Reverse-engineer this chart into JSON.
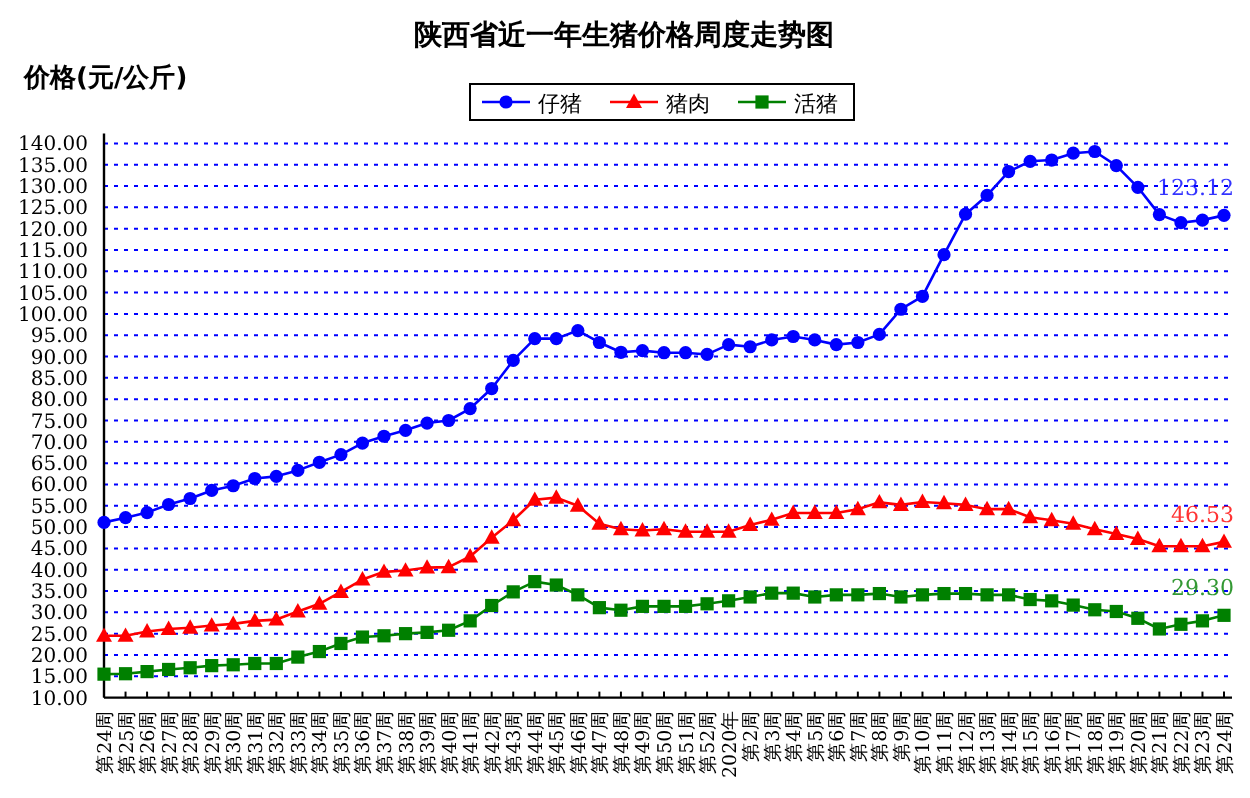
{
  "chart_data": {
    "type": "line",
    "title": "陕西省近一年生猪价格周度走势图",
    "ylabel": "价格(元/公斤)",
    "categories": [
      "第24周",
      "第25周",
      "第26周",
      "第27周",
      "第28周",
      "第29周",
      "第30周",
      "第31周",
      "第32周",
      "第33周",
      "第34周",
      "第35周",
      "第36周",
      "第37周",
      "第38周",
      "第39周",
      "第40周",
      "第41周",
      "第42周",
      "第43周",
      "第44周",
      "第45周",
      "第46周",
      "第47周",
      "第48周",
      "第49周",
      "第50周",
      "第51周",
      "第52周",
      "2020年",
      "第2周",
      "第3周",
      "第4周",
      "第5周",
      "第6周",
      "第7周",
      "第8周",
      "第9周",
      "第10周",
      "第11周",
      "第12周",
      "第13周",
      "第14周",
      "第15周",
      "第16周",
      "第17周",
      "第18周",
      "第19周",
      "第20周",
      "第21周",
      "第22周",
      "第23周",
      "第24周"
    ],
    "series": [
      {
        "name": "仔猪",
        "color": "#0000ff",
        "marker": "circle",
        "values": [
          51.1,
          52.2,
          53.4,
          55.3,
          56.7,
          58.6,
          59.7,
          61.4,
          61.9,
          63.3,
          65.2,
          67.0,
          69.7,
          71.3,
          72.7,
          74.4,
          75.0,
          77.8,
          82.5,
          89.1,
          94.2,
          94.2,
          96.1,
          93.3,
          91.0,
          91.4,
          90.9,
          90.9,
          90.5,
          92.8,
          92.3,
          93.9,
          94.7,
          93.9,
          92.8,
          93.3,
          95.2,
          101.1,
          104.1,
          113.9,
          123.4,
          127.8,
          133.4,
          135.8,
          136.1,
          137.7,
          138.1,
          134.8,
          129.7,
          123.3,
          121.4,
          122.0,
          123.12
        ],
        "value_labels": [
          null,
          null,
          null,
          null,
          null,
          null,
          null,
          null,
          null,
          null,
          null,
          null,
          null,
          null,
          null,
          null,
          null,
          null,
          null,
          null,
          null,
          null,
          null,
          null,
          null,
          null,
          null,
          null,
          null,
          null,
          null,
          null,
          null,
          null,
          null,
          null,
          null,
          null,
          null,
          null,
          null,
          null,
          null,
          null,
          null,
          null,
          null,
          null,
          null,
          null,
          null,
          null,
          "123.12"
        ]
      },
      {
        "name": "猪肉",
        "color": "#ff0000",
        "marker": "triangle",
        "values": [
          24.5,
          24.5,
          25.5,
          26.1,
          26.4,
          26.9,
          27.3,
          28.0,
          28.3,
          30.2,
          32.0,
          34.8,
          37.7,
          39.5,
          39.8,
          40.5,
          40.6,
          43.1,
          47.5,
          51.6,
          56.4,
          56.9,
          55.0,
          50.8,
          49.5,
          49.2,
          49.5,
          48.9,
          48.9,
          48.9,
          50.5,
          51.7,
          53.3,
          53.3,
          53.3,
          54.2,
          55.8,
          55.2,
          55.9,
          55.6,
          55.2,
          54.2,
          54.2,
          52.3,
          51.6,
          50.8,
          49.5,
          48.4,
          47.2,
          45.5,
          45.5,
          45.5,
          46.53
        ],
        "value_labels": [
          null,
          null,
          null,
          null,
          null,
          null,
          null,
          null,
          null,
          null,
          null,
          null,
          null,
          null,
          null,
          null,
          null,
          null,
          null,
          null,
          null,
          null,
          null,
          null,
          null,
          null,
          null,
          null,
          null,
          null,
          null,
          null,
          null,
          null,
          null,
          null,
          null,
          null,
          null,
          null,
          null,
          null,
          null,
          null,
          null,
          null,
          null,
          null,
          null,
          null,
          null,
          null,
          "46.53"
        ]
      },
      {
        "name": "活猪",
        "color": "#008000",
        "marker": "square",
        "values": [
          15.5,
          15.6,
          16.1,
          16.6,
          17.0,
          17.5,
          17.7,
          18.0,
          18.0,
          19.5,
          20.8,
          22.7,
          24.2,
          24.5,
          25.0,
          25.3,
          25.8,
          28.0,
          31.6,
          34.8,
          37.2,
          36.4,
          34.1,
          31.1,
          30.5,
          31.4,
          31.4,
          31.4,
          32.0,
          32.7,
          33.6,
          34.5,
          34.5,
          33.6,
          34.1,
          34.1,
          34.4,
          33.6,
          34.1,
          34.4,
          34.4,
          34.1,
          34.1,
          33.0,
          32.7,
          31.7,
          30.6,
          30.2,
          28.6,
          26.1,
          27.2,
          28.0,
          29.3
        ],
        "value_labels": [
          null,
          null,
          null,
          null,
          null,
          null,
          null,
          null,
          null,
          null,
          null,
          null,
          null,
          null,
          null,
          null,
          null,
          null,
          null,
          null,
          null,
          null,
          null,
          null,
          null,
          null,
          null,
          null,
          null,
          null,
          null,
          null,
          null,
          null,
          null,
          null,
          null,
          null,
          null,
          null,
          null,
          null,
          null,
          null,
          null,
          null,
          null,
          null,
          null,
          null,
          null,
          null,
          "29.30"
        ]
      }
    ],
    "ylim": [
      10,
      140
    ],
    "yticks": [
      {
        "value": 10,
        "label": "10.00"
      },
      {
        "value": 15,
        "label": "15.00"
      },
      {
        "value": 20,
        "label": "20.00"
      },
      {
        "value": 25,
        "label": "25.00"
      },
      {
        "value": 30,
        "label": "30.00"
      },
      {
        "value": 35,
        "label": "35.00"
      },
      {
        "value": 40,
        "label": "40.00"
      },
      {
        "value": 45,
        "label": "45.00"
      },
      {
        "value": 50,
        "label": "50.00"
      },
      {
        "value": 55,
        "label": "55.00"
      },
      {
        "value": 60,
        "label": "60.00"
      },
      {
        "value": 65,
        "label": "65.00"
      },
      {
        "value": 70,
        "label": "70.00"
      },
      {
        "value": 75,
        "label": "75.00"
      },
      {
        "value": 80,
        "label": "80.00"
      },
      {
        "value": 85,
        "label": "85.00"
      },
      {
        "value": 90,
        "label": "90.00"
      },
      {
        "value": 95,
        "label": "95.00"
      },
      {
        "value": 100,
        "label": "100.00"
      },
      {
        "value": 105,
        "label": "105.00"
      },
      {
        "value": 110,
        "label": "110.00"
      },
      {
        "value": 115,
        "label": "115.00"
      },
      {
        "value": 120,
        "label": "120.00"
      },
      {
        "value": 125,
        "label": "125.00"
      },
      {
        "value": 130,
        "label": "130.00"
      },
      {
        "value": 135,
        "label": "135.00"
      },
      {
        "value": 140,
        "label": "140.00"
      }
    ],
    "grid": "y",
    "legend": "top",
    "line_style": "solid"
  }
}
